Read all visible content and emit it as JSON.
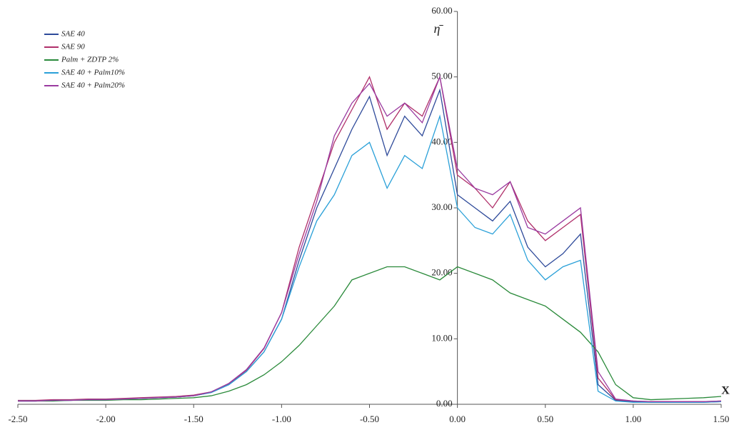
{
  "chart_data": {
    "type": "line",
    "x_label": "X",
    "y_label": "η̄",
    "x": [
      -2.5,
      -2.4,
      -2.3,
      -2.2,
      -2.1,
      -2.0,
      -1.9,
      -1.8,
      -1.7,
      -1.6,
      -1.5,
      -1.4,
      -1.3,
      -1.2,
      -1.1,
      -1.0,
      -0.9,
      -0.8,
      -0.7,
      -0.6,
      -0.5,
      -0.4,
      -0.3,
      -0.2,
      -0.1,
      0.0,
      0.1,
      0.2,
      0.3,
      0.4,
      0.5,
      0.6,
      0.7,
      0.8,
      0.9,
      1.0,
      1.1,
      1.2,
      1.3,
      1.4,
      1.5
    ],
    "series": [
      {
        "name": "SAE 40",
        "color": "#2e4a9a",
        "values": [
          0.5,
          0.5,
          0.6,
          0.6,
          0.7,
          0.7,
          0.8,
          0.9,
          1.0,
          1.1,
          1.3,
          1.8,
          3.0,
          5.0,
          8.0,
          13,
          22,
          30,
          36,
          42,
          47,
          38,
          44,
          41,
          48,
          32,
          30,
          28,
          31,
          24,
          21,
          23,
          26,
          3.0,
          0.6,
          0.4,
          0.3,
          0.3,
          0.3,
          0.3,
          0.4
        ]
      },
      {
        "name": "SAE 90",
        "color": "#b0306a",
        "values": [
          0.6,
          0.6,
          0.7,
          0.7,
          0.8,
          0.8,
          0.9,
          1.0,
          1.1,
          1.2,
          1.4,
          1.9,
          3.1,
          5.2,
          8.5,
          14,
          24,
          32,
          40,
          45,
          50,
          42,
          46,
          44,
          50,
          35,
          33,
          30,
          34,
          28,
          25,
          27,
          29,
          4.0,
          0.7,
          0.5,
          0.4,
          0.4,
          0.4,
          0.4,
          0.5
        ]
      },
      {
        "name": "Palm + ZDTP 2%",
        "color": "#2a8a3a",
        "values": [
          0.5,
          0.5,
          0.5,
          0.6,
          0.6,
          0.6,
          0.7,
          0.7,
          0.8,
          0.9,
          1.0,
          1.3,
          2.0,
          3.0,
          4.5,
          6.5,
          9,
          12,
          15,
          19,
          20,
          21,
          21,
          20,
          19,
          21,
          20,
          19,
          17,
          16,
          15,
          13,
          11,
          8,
          3,
          1,
          0.7,
          0.8,
          0.9,
          1.0,
          1.2
        ]
      },
      {
        "name": "SAE 40 + Palm10%",
        "color": "#2aa0d8",
        "values": [
          0.5,
          0.5,
          0.6,
          0.6,
          0.7,
          0.7,
          0.8,
          0.9,
          1.0,
          1.1,
          1.3,
          1.8,
          3.0,
          5.0,
          8.0,
          13,
          21,
          28,
          32,
          38,
          40,
          33,
          38,
          36,
          44,
          30,
          27,
          26,
          29,
          22,
          19,
          21,
          22,
          2.0,
          0.5,
          0.3,
          0.3,
          0.3,
          0.3,
          0.3,
          0.4
        ]
      },
      {
        "name": "SAE 40 + Palm20%",
        "color": "#9a3aa0",
        "values": [
          0.5,
          0.5,
          0.6,
          0.6,
          0.7,
          0.7,
          0.8,
          0.9,
          1.0,
          1.1,
          1.3,
          1.9,
          3.2,
          5.3,
          8.6,
          14,
          23,
          31,
          41,
          46,
          49,
          44,
          46,
          43,
          50,
          36,
          33,
          32,
          34,
          27,
          26,
          28,
          30,
          5.0,
          0.8,
          0.5,
          0.4,
          0.4,
          0.4,
          0.4,
          0.5
        ]
      }
    ],
    "xlim": [
      -2.5,
      1.5
    ],
    "ylim": [
      0,
      60
    ],
    "xticks": [
      {
        "value": -2.5,
        "label": "-2.50"
      },
      {
        "value": -2.0,
        "label": "-2.00"
      },
      {
        "value": -1.5,
        "label": "-1.50"
      },
      {
        "value": -1.0,
        "label": "-1.00"
      },
      {
        "value": -0.5,
        "label": "-0.50"
      },
      {
        "value": 0,
        "label": "0.00"
      },
      {
        "value": 0.5,
        "label": "0.50"
      },
      {
        "value": 1.0,
        "label": "1.00"
      },
      {
        "value": 1.5,
        "label": "1.50"
      }
    ],
    "yticks": [
      {
        "value": 0,
        "label": "0.00"
      },
      {
        "value": 10,
        "label": "10.00"
      },
      {
        "value": 20,
        "label": "20.00"
      },
      {
        "value": 30,
        "label": "30.00"
      },
      {
        "value": 40,
        "label": "40.00"
      },
      {
        "value": 50,
        "label": "50.00"
      },
      {
        "value": 60,
        "label": "60.00"
      }
    ],
    "legend": "upper left",
    "grid": false
  }
}
